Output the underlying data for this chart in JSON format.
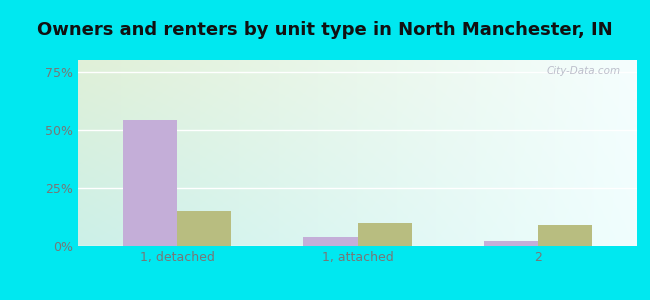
{
  "title": "Owners and renters by unit type in North Manchester, IN",
  "categories": [
    "1, detached",
    "1, attached",
    "2"
  ],
  "owner_values": [
    54.0,
    4.0,
    2.0
  ],
  "renter_values": [
    15.0,
    10.0,
    9.0
  ],
  "owner_color": "#c4aed8",
  "renter_color": "#b8bd80",
  "yticks": [
    0,
    25,
    50,
    75
  ],
  "ytick_labels": [
    "0%",
    "25%",
    "50%",
    "75%"
  ],
  "ylim": [
    0,
    80
  ],
  "outer_bg": "#00e8f0",
  "bar_width": 0.3,
  "watermark": "City-Data.com",
  "title_fontsize": 13,
  "axis_label_fontsize": 9,
  "legend_fontsize": 9
}
